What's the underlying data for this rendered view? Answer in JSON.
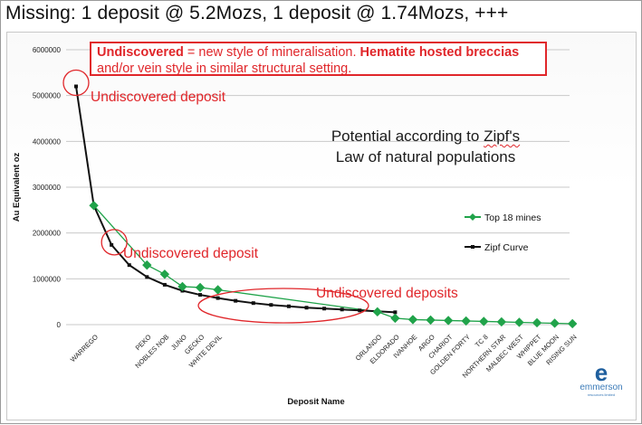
{
  "slide": {
    "title": "Missing: 1 deposit @ 5.2Mozs, 1 deposit @ 1.74Mozs, +++",
    "callout": {
      "bold_a": "Undiscovered",
      "text_a": " = new style of mineralisation. ",
      "bold_b": "Hematite hosted breccias",
      "text_b": "and/or vein style in similar structural setting."
    },
    "zipf_note": {
      "line1_pre": "Potential  according to ",
      "line1_word": "Zipf's",
      "line2": "Law of natural populations"
    },
    "logo": {
      "mark": "e",
      "name": "emmerson",
      "sub": "resources limited"
    },
    "colors": {
      "mines": "#20a34a",
      "zipf": "#111111",
      "annotation": "#e0262a",
      "logo": "#1f5f9e"
    }
  },
  "chart_data": {
    "type": "line",
    "xlabel": "Deposit Name",
    "ylabel": "Au Equivalent  oz",
    "ylim": [
      0,
      6000000
    ],
    "yticks": [
      0,
      1000000,
      2000000,
      3000000,
      4000000,
      5000000,
      6000000
    ],
    "ytick_labels": [
      "0",
      "1000000",
      "2000000",
      "3000000",
      "4000000",
      "5000000",
      "6000000"
    ],
    "grid": true,
    "categories": [
      "",
      "WARREGO",
      "",
      "",
      "PEKO",
      "NOBLES NOB",
      "JUNO",
      "GECKO",
      "WHITE DEVIL",
      "",
      "",
      "",
      "",
      "",
      "",
      "",
      "",
      "ORLANDO",
      "ELDORADO",
      "IVANHOE",
      "ARGO",
      "CHARIOT",
      "GOLDEN FORTY",
      "TC 8",
      "NORTHERN STAR",
      "MALBEC WEST",
      "WHIPPET",
      "BLUE MOON",
      "RISING SUN"
    ],
    "series": [
      {
        "name": "Top 18 mines",
        "x": [
          1,
          4,
          5,
          6,
          7,
          8,
          17,
          18,
          19,
          20,
          21,
          22,
          23,
          24,
          25,
          26,
          27,
          28
        ],
        "values": [
          2600000,
          1300000,
          1100000,
          830000,
          810000,
          760000,
          280000,
          140000,
          110000,
          100000,
          90000,
          80000,
          70000,
          60000,
          50000,
          40000,
          30000,
          20000
        ]
      },
      {
        "name": "Zipf Curve",
        "x": [
          0,
          1,
          2,
          3,
          4,
          5,
          6,
          7,
          8,
          9,
          10,
          11,
          12,
          13,
          14,
          15,
          16,
          17,
          18
        ],
        "values": [
          5200000,
          2600000,
          1740000,
          1300000,
          1040000,
          870000,
          740000,
          650000,
          580000,
          520000,
          470000,
          430000,
          400000,
          370000,
          350000,
          330000,
          310000,
          290000,
          270000
        ]
      }
    ],
    "legend": {
      "placement": "right"
    },
    "annotations": [
      "Undiscovered deposit",
      "Undiscovered deposit",
      "Undiscovered deposits"
    ]
  }
}
